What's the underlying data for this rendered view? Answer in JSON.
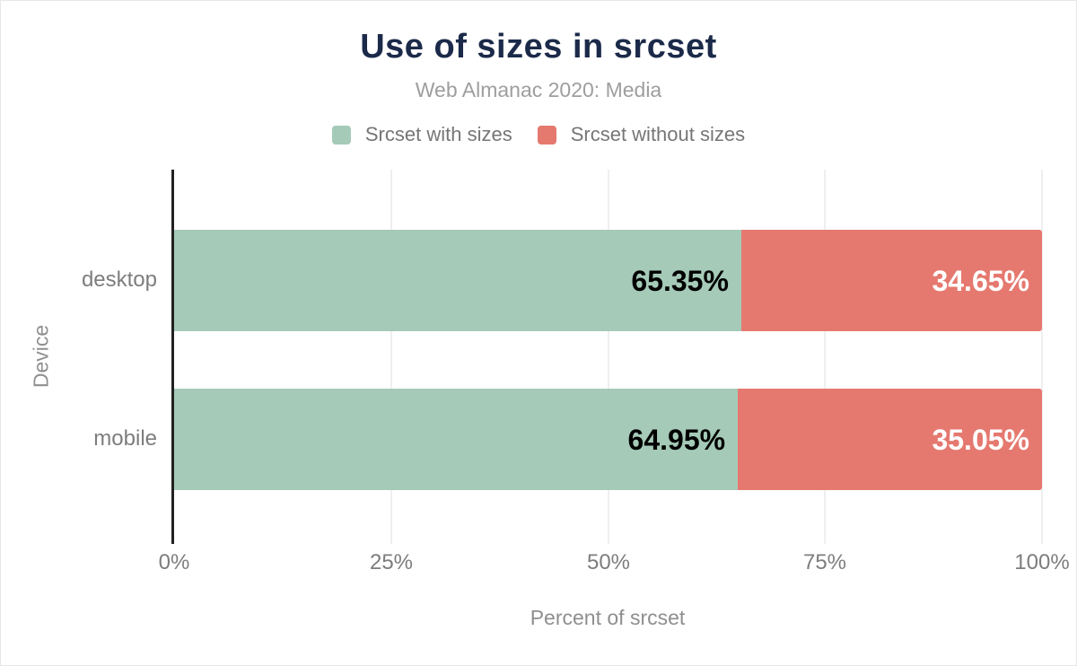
{
  "chart_data": {
    "type": "bar",
    "orientation": "horizontal",
    "stacked": true,
    "title": "Use of sizes in srcset",
    "subtitle": "Web Almanac 2020: Media",
    "categories": [
      "desktop",
      "mobile"
    ],
    "series": [
      {
        "name": "Srcset with sizes",
        "color": "#a5cab8",
        "values": [
          65.35,
          64.95
        ],
        "labels": [
          "65.35%",
          "64.95%"
        ],
        "label_color": "#000000"
      },
      {
        "name": "Srcset without sizes",
        "color": "#e5796f",
        "values": [
          34.65,
          35.05
        ],
        "labels": [
          "34.65%",
          "35.05%"
        ],
        "label_color": "#ffffff"
      }
    ],
    "xlabel": "Percent of srcset",
    "ylabel": "Device",
    "xlim": [
      0,
      100
    ],
    "x_ticks": [
      "0%",
      "25%",
      "50%",
      "75%",
      "100%"
    ],
    "grid": "vertical",
    "legend_position": "top",
    "colors": {
      "title": "#1b2a49",
      "subtitle": "#9e9e9e",
      "axis_line": "#222222",
      "gridline": "#efefef",
      "tick_text": "#7d7d7d",
      "axis_title_text": "#8f8f8f",
      "background": "#ffffff"
    }
  }
}
